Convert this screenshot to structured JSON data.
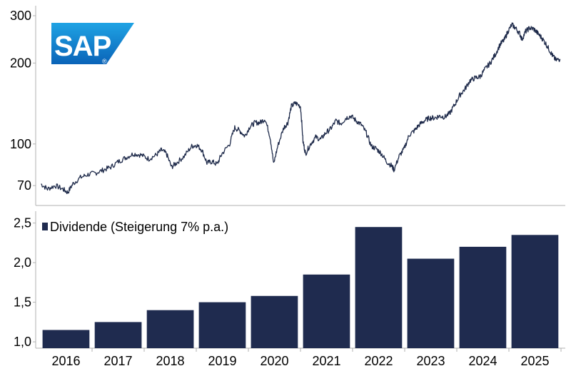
{
  "logo": {
    "text": "SAP",
    "registered": "®",
    "color_light": "#1fa3e4",
    "color_dark": "#0a63b8"
  },
  "colors": {
    "line": "#1e2a4a",
    "bar": "#1f2b4f",
    "axis": "#b0b0b0"
  },
  "chart_data": [
    {
      "type": "line",
      "scale": "log",
      "y_ticks": [
        {
          "value": 70,
          "label": "70"
        },
        {
          "value": 100,
          "label": "100"
        },
        {
          "value": 200,
          "label": "200"
        },
        {
          "value": 300,
          "label": "300"
        }
      ],
      "ylim": [
        62,
        300
      ],
      "xlim": [
        2015.6,
        2025.9
      ],
      "series": [
        {
          "points": [
            [
              2015.62,
              71
            ],
            [
              2015.75,
              68
            ],
            [
              2015.9,
              70
            ],
            [
              2016.05,
              68
            ],
            [
              2016.15,
              66
            ],
            [
              2016.25,
              71
            ],
            [
              2016.4,
              75
            ],
            [
              2016.55,
              77
            ],
            [
              2016.7,
              78
            ],
            [
              2016.85,
              80
            ],
            [
              2017.0,
              82
            ],
            [
              2017.15,
              86
            ],
            [
              2017.3,
              89
            ],
            [
              2017.45,
              92
            ],
            [
              2017.6,
              91
            ],
            [
              2017.75,
              88
            ],
            [
              2017.9,
              91
            ],
            [
              2018.0,
              95
            ],
            [
              2018.1,
              92
            ],
            [
              2018.2,
              82
            ],
            [
              2018.3,
              85
            ],
            [
              2018.45,
              90
            ],
            [
              2018.6,
              98
            ],
            [
              2018.7,
              99
            ],
            [
              2018.8,
              95
            ],
            [
              2018.9,
              85
            ],
            [
              2019.0,
              86
            ],
            [
              2019.1,
              84
            ],
            [
              2019.2,
              92
            ],
            [
              2019.35,
              100
            ],
            [
              2019.45,
              115
            ],
            [
              2019.55,
              112
            ],
            [
              2019.65,
              107
            ],
            [
              2019.75,
              116
            ],
            [
              2019.85,
              120
            ],
            [
              2019.95,
              120
            ],
            [
              2020.05,
              124
            ],
            [
              2020.15,
              106
            ],
            [
              2020.22,
              84
            ],
            [
              2020.3,
              98
            ],
            [
              2020.42,
              115
            ],
            [
              2020.5,
              120
            ],
            [
              2020.57,
              138
            ],
            [
              2020.65,
              142
            ],
            [
              2020.75,
              138
            ],
            [
              2020.8,
              102
            ],
            [
              2020.85,
              92
            ],
            [
              2020.95,
              100
            ],
            [
              2021.05,
              106
            ],
            [
              2021.15,
              104
            ],
            [
              2021.25,
              110
            ],
            [
              2021.35,
              114
            ],
            [
              2021.45,
              122
            ],
            [
              2021.55,
              119
            ],
            [
              2021.65,
              125
            ],
            [
              2021.75,
              127
            ],
            [
              2021.85,
              122
            ],
            [
              2021.95,
              118
            ],
            [
              2022.05,
              110
            ],
            [
              2022.15,
              98
            ],
            [
              2022.25,
              96
            ],
            [
              2022.35,
              92
            ],
            [
              2022.45,
              86
            ],
            [
              2022.55,
              83
            ],
            [
              2022.6,
              80
            ],
            [
              2022.7,
              90
            ],
            [
              2022.8,
              96
            ],
            [
              2022.9,
              108
            ],
            [
              2023.0,
              112
            ],
            [
              2023.1,
              118
            ],
            [
              2023.2,
              122
            ],
            [
              2023.3,
              125
            ],
            [
              2023.4,
              125
            ],
            [
              2023.5,
              127
            ],
            [
              2023.6,
              126
            ],
            [
              2023.7,
              130
            ],
            [
              2023.8,
              140
            ],
            [
              2023.9,
              152
            ],
            [
              2024.0,
              160
            ],
            [
              2024.1,
              172
            ],
            [
              2024.2,
              176
            ],
            [
              2024.3,
              178
            ],
            [
              2024.4,
              190
            ],
            [
              2024.5,
              200
            ],
            [
              2024.6,
              215
            ],
            [
              2024.7,
              235
            ],
            [
              2024.78,
              244
            ],
            [
              2024.85,
              262
            ],
            [
              2024.93,
              278
            ],
            [
              2025.0,
              270
            ],
            [
              2025.08,
              258
            ],
            [
              2025.13,
              245
            ],
            [
              2025.2,
              262
            ],
            [
              2025.28,
              270
            ],
            [
              2025.36,
              268
            ],
            [
              2025.44,
              258
            ],
            [
              2025.52,
              248
            ],
            [
              2025.6,
              236
            ],
            [
              2025.68,
              222
            ],
            [
              2025.74,
              212
            ],
            [
              2025.8,
              205
            ],
            [
              2025.88,
              207
            ]
          ]
        }
      ]
    },
    {
      "type": "bar",
      "categories": [
        "2016",
        "2017",
        "2018",
        "2019",
        "2020",
        "2021",
        "2022",
        "2023",
        "2024",
        "2025"
      ],
      "values": [
        1.15,
        1.25,
        1.4,
        1.5,
        1.58,
        1.85,
        2.45,
        2.05,
        2.2,
        2.35
      ],
      "ylim": [
        0.92,
        2.65
      ],
      "y_ticks": [
        {
          "value": 1.0,
          "label": "1,0"
        },
        {
          "value": 1.5,
          "label": "1,5"
        },
        {
          "value": 2.0,
          "label": "2,0"
        },
        {
          "value": 2.5,
          "label": "2,5"
        }
      ],
      "legend": {
        "label": "Dividende (Steigerung 7% p.a.)",
        "position": "top-left"
      }
    }
  ]
}
